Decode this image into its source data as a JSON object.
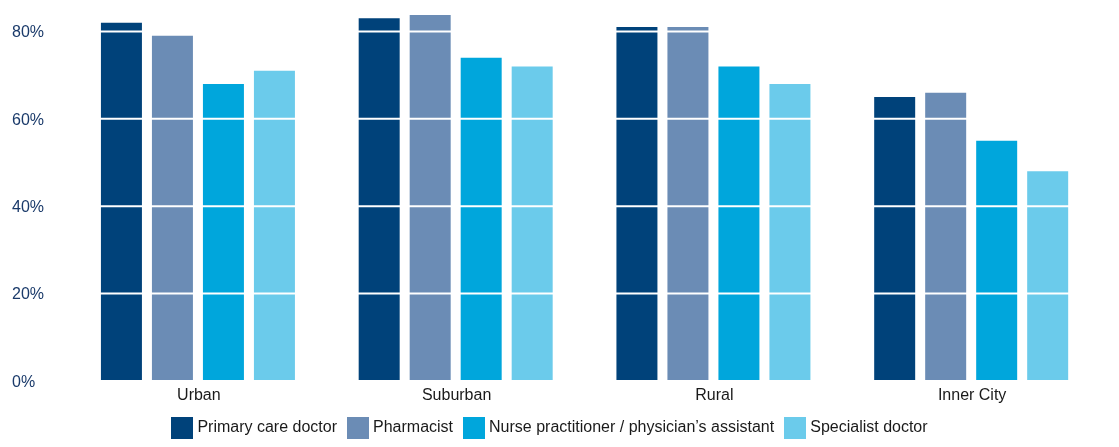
{
  "chart_data": {
    "type": "bar",
    "categories": [
      "Urban",
      "Suburban",
      "Rural",
      "Inner City"
    ],
    "series": [
      {
        "name": "Primary care doctor",
        "color": "#00427a",
        "values": [
          82,
          83,
          81,
          65
        ]
      },
      {
        "name": "Pharmacist",
        "color": "#6b8cb5",
        "values": [
          79,
          84,
          81,
          66
        ]
      },
      {
        "name": "Nurse practitioner / physician’s assistant",
        "color": "#00a6dc",
        "values": [
          68,
          74,
          72,
          55
        ]
      },
      {
        "name": "Specialist doctor",
        "color": "#6bcbeb",
        "values": [
          71,
          72,
          68,
          48
        ]
      }
    ],
    "ylim": [
      0,
      84
    ],
    "yticks": [
      {
        "value": 0,
        "label": "0%"
      },
      {
        "value": 20,
        "label": "20%"
      },
      {
        "value": 40,
        "label": "40%"
      },
      {
        "value": 60,
        "label": "60%"
      },
      {
        "value": 80,
        "label": "80%"
      }
    ],
    "grid": "y",
    "legend": "bottom"
  }
}
